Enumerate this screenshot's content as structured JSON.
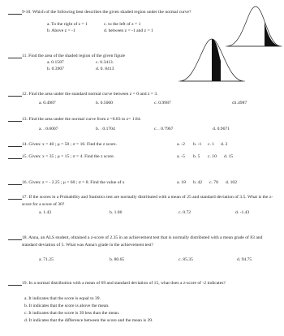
{
  "questions": [
    {
      "text": "9-10. Which of the following best describes the given shaded region under the normal curve?",
      "options": [
        "a.  To the right of z = 1",
        "c. to the left of z = 1",
        "b.  Above z = -1",
        "d. between z = -1 and z = 1"
      ]
    },
    {
      "text": "11. Find the area of the shaded region of the given figure",
      "options": [
        "a.  0.1587",
        "c.  0.3413.",
        "b.  0.3907",
        "d. 0. 8413"
      ]
    },
    {
      "text": "12. Find the area under the standard normal curve between z = 0 and z = 3.",
      "options": [
        "a.  0.4987",
        "b.  0.5000",
        "c.  0.9987",
        "d1.4987"
      ]
    },
    {
      "text": "13. Find the area under the normal curve from z =0.83 to z= 1.84.",
      "options": [
        "a. . 0.0007",
        "b. . 0.1704",
        "c. . 0.7967",
        "d. 0.9671"
      ]
    },
    {
      "text": "14. Given: x = 40 ; μ = 50 ; σ = 10. Find the z score.",
      "options": [
        "a. -2",
        "b. -1",
        "c. 1",
        "d. 2"
      ]
    },
    {
      "text": "15. Given: x = 35 ; μ = 15 ; σ = 4. Find the z score.",
      "options": [
        "a. -5",
        "b. 5",
        "c. 10",
        "d. 15"
      ]
    },
    {
      "text": "16. Given: z = - 2.25 ; μ = 60 ; σ = 8. Find the value of x",
      "options": [
        "a. 18",
        "b. 42",
        "c. 78",
        "d. 102"
      ]
    },
    {
      "text": "17. If the scores in a Probability and Statistics test are normally distributed with a mean of 25 and standard deviation of 3.5. What is the z-score for a score of 30?",
      "options": [
        "a.   1.43",
        "b. 1.06",
        "c. 0.72",
        "d. -1.43"
      ]
    },
    {
      "text": "18. Anna, an ALS student, obtained a z-score of 2.35 in an achievement test that is normally distributed with a mean grade of 83 and standard deviation of 5. What was Anna's grade in the achievement test?",
      "options": [
        "a.  71.25",
        "b. 80.65",
        "c. 85.35",
        "d. 94.75"
      ]
    },
    {
      "text": "19. In a normal distribution with a mean of 69 and standard deviation of 15, what does a z-score of -2 indicates?",
      "options": [
        "a.  It indicates that the score is equal to 39.",
        "b.  It indicates that the score is above the mean.",
        "c.  It indicates that the score is 39 less than the mean.",
        "d.  It indicates that the difference between the score and the mean is 39."
      ]
    }
  ]
}
